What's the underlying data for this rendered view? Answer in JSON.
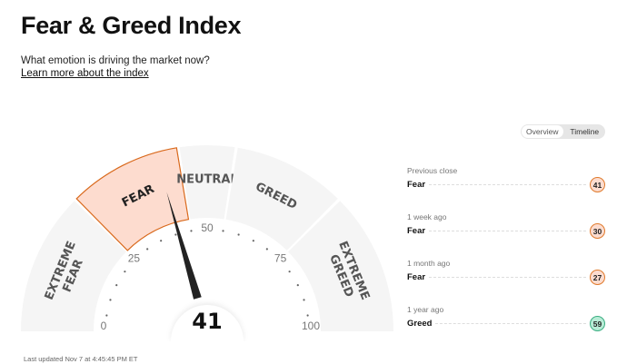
{
  "header": {
    "title": "Fear & Greed Index",
    "subtitle": "What emotion is driving the market now?",
    "learn_more": "Learn more about the index"
  },
  "toggle": {
    "options": [
      "Overview",
      "Timeline"
    ],
    "active": "Overview"
  },
  "gauge": {
    "value": 41,
    "value_label": "41",
    "segments": [
      {
        "label": [
          "EXTREME",
          "FEAR"
        ],
        "from": 0,
        "to": 25
      },
      {
        "label": [
          "FEAR"
        ],
        "from": 25,
        "to": 45,
        "active": true
      },
      {
        "label": [
          "NEUTRAL"
        ],
        "from": 45,
        "to": 55
      },
      {
        "label": [
          "GREED"
        ],
        "from": 55,
        "to": 75
      },
      {
        "label": [
          "EXTREME",
          "GREED"
        ],
        "from": 75,
        "to": 100
      }
    ],
    "ticks": [
      "0",
      "25",
      "50",
      "75",
      "100"
    ],
    "colors": {
      "segment": "#f5f5f5",
      "active_fill": "#fddccf",
      "active_stroke": "#d9691c",
      "needle": "#222222"
    }
  },
  "history": [
    {
      "when": "Previous close",
      "rating": "Fear",
      "value": "41",
      "type": "fear"
    },
    {
      "when": "1 week ago",
      "rating": "Fear",
      "value": "30",
      "type": "fear"
    },
    {
      "when": "1 month ago",
      "rating": "Fear",
      "value": "27",
      "type": "fear"
    },
    {
      "when": "1 year ago",
      "rating": "Greed",
      "value": "59",
      "type": "greed"
    }
  ],
  "updated": "Last updated Nov 7 at 4:45:45 PM ET"
}
